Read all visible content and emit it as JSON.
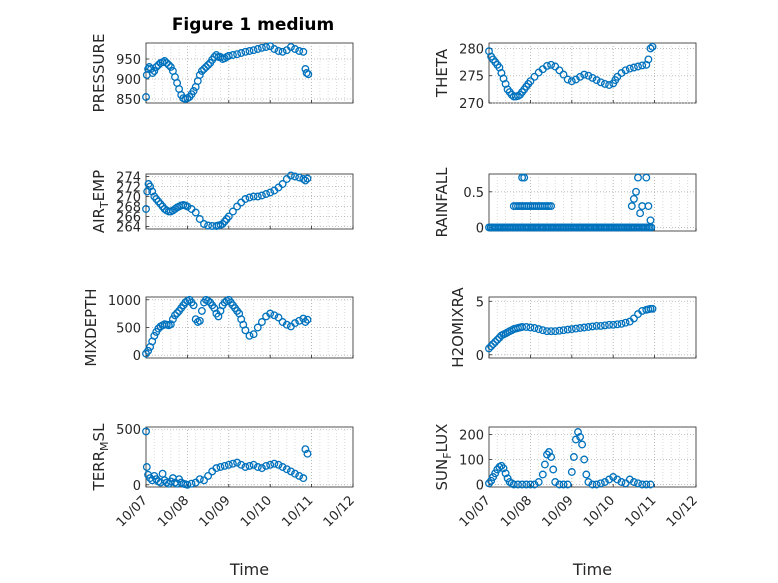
{
  "figure": {
    "title": "Figure 1 medium",
    "marker_color": "#0072BD"
  },
  "chart_data": [
    {
      "type": "scatter",
      "ylabel": "PRESSURE",
      "ylim": [
        840,
        990
      ],
      "yticks": [
        850,
        900,
        950
      ],
      "ytick_labels": [
        "850",
        "900",
        "950"
      ],
      "xlim": [
        0,
        5
      ],
      "xticks": [
        0,
        1,
        2,
        3,
        4,
        5
      ],
      "xtick_labels": [
        "10/07",
        "10/08",
        "10/09",
        "10/10",
        "10/11",
        "10/12"
      ],
      "show_x_labels": false,
      "xlabel": "",
      "x": [
        0.0,
        0.02,
        0.05,
        0.08,
        0.12,
        0.16,
        0.2,
        0.25,
        0.3,
        0.35,
        0.4,
        0.45,
        0.5,
        0.55,
        0.6,
        0.65,
        0.7,
        0.75,
        0.8,
        0.85,
        0.9,
        0.95,
        1.0,
        1.05,
        1.1,
        1.15,
        1.2,
        1.25,
        1.3,
        1.35,
        1.4,
        1.45,
        1.5,
        1.55,
        1.6,
        1.65,
        1.7,
        1.75,
        1.8,
        1.85,
        1.9,
        1.95,
        2.0,
        2.1,
        2.2,
        2.3,
        2.4,
        2.5,
        2.6,
        2.7,
        2.8,
        2.9,
        3.0,
        3.1,
        3.2,
        3.3,
        3.4,
        3.5,
        3.6,
        3.7,
        3.8,
        3.85,
        3.88,
        3.92
      ],
      "y": [
        855,
        910,
        925,
        930,
        925,
        915,
        920,
        930,
        935,
        940,
        942,
        945,
        940,
        935,
        930,
        920,
        905,
        890,
        875,
        860,
        852,
        850,
        852,
        855,
        862,
        870,
        880,
        895,
        910,
        920,
        925,
        930,
        935,
        940,
        948,
        955,
        960,
        955,
        955,
        950,
        952,
        955,
        958,
        960,
        962,
        965,
        968,
        970,
        972,
        975,
        978,
        980,
        982,
        975,
        970,
        968,
        972,
        980,
        975,
        970,
        968,
        925,
        915,
        912
      ]
    },
    {
      "type": "scatter",
      "ylabel": "THETA",
      "ylim": [
        270,
        281
      ],
      "yticks": [
        270,
        275,
        280
      ],
      "ytick_labels": [
        "270",
        "275",
        "280"
      ],
      "xlim": [
        0,
        5
      ],
      "xticks": [
        0,
        1,
        2,
        3,
        4,
        5
      ],
      "xtick_labels": [
        "10/07",
        "10/08",
        "10/09",
        "10/10",
        "10/11",
        "10/12"
      ],
      "show_x_labels": false,
      "xlabel": "",
      "x": [
        0.0,
        0.05,
        0.1,
        0.15,
        0.2,
        0.25,
        0.3,
        0.35,
        0.4,
        0.45,
        0.5,
        0.55,
        0.6,
        0.65,
        0.7,
        0.75,
        0.8,
        0.85,
        0.9,
        0.95,
        1.0,
        1.1,
        1.2,
        1.3,
        1.4,
        1.5,
        1.6,
        1.7,
        1.8,
        1.9,
        2.0,
        2.1,
        2.2,
        2.3,
        2.4,
        2.5,
        2.6,
        2.7,
        2.8,
        2.9,
        3.0,
        3.05,
        3.1,
        3.2,
        3.3,
        3.4,
        3.5,
        3.6,
        3.7,
        3.8,
        3.85,
        3.9,
        3.95
      ],
      "y": [
        279.5,
        278.5,
        278,
        277.5,
        277,
        276.5,
        275.5,
        274.5,
        273.5,
        272.5,
        272,
        271.5,
        271.2,
        271.2,
        271.3,
        271.5,
        272,
        272.5,
        273,
        273.5,
        274,
        274.8,
        275.6,
        276.2,
        276.8,
        277,
        276.7,
        276,
        275.2,
        274.3,
        274,
        274.3,
        274.8,
        275.2,
        275,
        274.6,
        274.2,
        273.8,
        273.5,
        273.3,
        273.6,
        274.2,
        274.8,
        275.5,
        276,
        276.3,
        276.5,
        276.7,
        276.9,
        277,
        278,
        280,
        280.3
      ]
    },
    {
      "type": "scatter",
      "ylabel": "AIR_T_EMP",
      "ylabel_parts": [
        "AIR",
        "T",
        "EMP"
      ],
      "ylim": [
        263.5,
        274.5
      ],
      "yticks": [
        264,
        266,
        268,
        270,
        272,
        274
      ],
      "ytick_labels": [
        "264",
        "266",
        "268",
        "270",
        "272",
        "274"
      ],
      "xlim": [
        0,
        5
      ],
      "xticks": [
        0,
        1,
        2,
        3,
        4,
        5
      ],
      "xtick_labels": [
        "10/07",
        "10/08",
        "10/09",
        "10/10",
        "10/11",
        "10/12"
      ],
      "show_x_labels": false,
      "xlabel": "",
      "x": [
        0.0,
        0.03,
        0.06,
        0.1,
        0.15,
        0.2,
        0.25,
        0.3,
        0.35,
        0.4,
        0.45,
        0.5,
        0.55,
        0.6,
        0.65,
        0.7,
        0.75,
        0.8,
        0.85,
        0.9,
        0.95,
        1.0,
        1.1,
        1.2,
        1.3,
        1.4,
        1.5,
        1.6,
        1.7,
        1.75,
        1.8,
        1.85,
        1.9,
        1.95,
        2.0,
        2.1,
        2.2,
        2.3,
        2.4,
        2.5,
        2.6,
        2.7,
        2.8,
        2.9,
        3.0,
        3.1,
        3.2,
        3.3,
        3.4,
        3.5,
        3.6,
        3.7,
        3.8,
        3.85,
        3.9
      ],
      "y": [
        267.5,
        271,
        272.5,
        272,
        271,
        270,
        269.5,
        269,
        268.5,
        268,
        267.5,
        267.2,
        267,
        267,
        267.2,
        267.5,
        267.8,
        268,
        268.2,
        268.3,
        268.2,
        268,
        267.5,
        266.8,
        265.5,
        264.5,
        264.2,
        264.1,
        264.1,
        264.2,
        264.3,
        264.5,
        265,
        265.5,
        266,
        267,
        268,
        268.8,
        269.5,
        269.8,
        270,
        270,
        270.2,
        270.5,
        270.8,
        271.2,
        271.8,
        272.5,
        273.5,
        274.2,
        274,
        273.8,
        273.5,
        273.2,
        273.6
      ]
    },
    {
      "type": "scatter",
      "ylabel": "RAINFALL",
      "ylim": [
        -0.05,
        0.75
      ],
      "yticks": [
        0,
        0.5
      ],
      "ytick_labels": [
        "0",
        "0.5"
      ],
      "xlim": [
        0,
        5
      ],
      "xticks": [
        0,
        1,
        2,
        3,
        4,
        5
      ],
      "xtick_labels": [
        "10/07",
        "10/08",
        "10/09",
        "10/10",
        "10/11",
        "10/12"
      ],
      "show_x_labels": false,
      "xlabel": "",
      "x": [
        0.0,
        0.04,
        0.08,
        0.12,
        0.16,
        0.2,
        0.24,
        0.28,
        0.32,
        0.36,
        0.4,
        0.44,
        0.48,
        0.52,
        0.56,
        0.6,
        0.64,
        0.68,
        0.72,
        0.76,
        0.8,
        0.84,
        0.88,
        0.92,
        0.96,
        1.0,
        1.04,
        1.08,
        1.12,
        1.16,
        1.2,
        1.24,
        1.28,
        1.32,
        1.36,
        1.4,
        1.44,
        1.48,
        1.52,
        1.56,
        1.6,
        1.64,
        1.68,
        1.72,
        1.76,
        1.8,
        1.84,
        1.88,
        1.92,
        1.96,
        2.0,
        2.04,
        2.08,
        2.12,
        2.16,
        2.2,
        2.24,
        2.28,
        2.32,
        2.36,
        2.4,
        2.44,
        2.48,
        2.52,
        2.56,
        2.6,
        2.64,
        2.68,
        2.72,
        2.76,
        2.8,
        2.84,
        2.88,
        2.92,
        2.96,
        3.0,
        3.04,
        3.08,
        3.12,
        3.16,
        3.2,
        3.24,
        3.28,
        3.32,
        3.36,
        3.4,
        3.44,
        3.48,
        3.52,
        3.56,
        3.6,
        3.64,
        3.68,
        3.72,
        3.76,
        3.8,
        3.84,
        3.88,
        3.92,
        0.6,
        0.65,
        0.7,
        0.75,
        0.8,
        0.85,
        0.9,
        0.95,
        1.0,
        1.05,
        1.1,
        1.15,
        1.2,
        1.25,
        1.3,
        1.35,
        1.4,
        1.45,
        1.5,
        0.8,
        0.85,
        3.45,
        3.5,
        3.55,
        3.6,
        3.65,
        3.7,
        3.8,
        3.85,
        3.9
      ],
      "y": [
        0,
        0,
        0,
        0,
        0,
        0,
        0,
        0,
        0,
        0,
        0,
        0,
        0,
        0,
        0,
        0,
        0,
        0,
        0,
        0,
        0,
        0,
        0,
        0,
        0,
        0,
        0,
        0,
        0,
        0,
        0,
        0,
        0,
        0,
        0,
        0,
        0,
        0,
        0,
        0,
        0,
        0,
        0,
        0,
        0,
        0,
        0,
        0,
        0,
        0,
        0,
        0,
        0,
        0,
        0,
        0,
        0,
        0,
        0,
        0,
        0,
        0,
        0,
        0,
        0,
        0,
        0,
        0,
        0,
        0,
        0,
        0,
        0,
        0,
        0,
        0,
        0,
        0,
        0,
        0,
        0,
        0,
        0,
        0,
        0,
        0,
        0,
        0,
        0,
        0,
        0,
        0,
        0,
        0,
        0,
        0,
        0,
        0,
        0,
        0.3,
        0.3,
        0.3,
        0.3,
        0.3,
        0.3,
        0.3,
        0.3,
        0.3,
        0.3,
        0.3,
        0.3,
        0.3,
        0.3,
        0.3,
        0.3,
        0.3,
        0.3,
        0.3,
        0.7,
        0.7,
        0.3,
        0.4,
        0.5,
        0.7,
        0.2,
        0.3,
        0.7,
        0.3,
        0.1
      ]
    },
    {
      "type": "scatter",
      "ylabel": "MIXDEPTH",
      "ylim": [
        -50,
        1050
      ],
      "yticks": [
        0,
        500,
        1000
      ],
      "ytick_labels": [
        "0",
        "500",
        "1000"
      ],
      "xlim": [
        0,
        5
      ],
      "xticks": [
        0,
        1,
        2,
        3,
        4,
        5
      ],
      "xtick_labels": [
        "10/07",
        "10/08",
        "10/09",
        "10/10",
        "10/11",
        "10/12"
      ],
      "show_x_labels": false,
      "xlabel": "",
      "x": [
        0.0,
        0.05,
        0.1,
        0.15,
        0.2,
        0.25,
        0.3,
        0.35,
        0.4,
        0.45,
        0.5,
        0.55,
        0.6,
        0.65,
        0.7,
        0.75,
        0.8,
        0.85,
        0.9,
        0.95,
        1.0,
        1.05,
        1.1,
        1.15,
        1.2,
        1.25,
        1.3,
        1.35,
        1.4,
        1.45,
        1.5,
        1.55,
        1.6,
        1.65,
        1.7,
        1.75,
        1.8,
        1.85,
        1.9,
        1.95,
        2.0,
        2.05,
        2.1,
        2.15,
        2.2,
        2.25,
        2.3,
        2.35,
        2.4,
        2.5,
        2.6,
        2.7,
        2.8,
        2.9,
        3.0,
        3.1,
        3.2,
        3.3,
        3.4,
        3.5,
        3.6,
        3.7,
        3.8,
        3.85,
        3.9
      ],
      "y": [
        30,
        80,
        150,
        250,
        350,
        420,
        480,
        520,
        540,
        560,
        550,
        540,
        560,
        650,
        720,
        760,
        800,
        850,
        900,
        950,
        980,
        1000,
        950,
        900,
        650,
        600,
        620,
        800,
        950,
        1000,
        980,
        950,
        900,
        850,
        750,
        700,
        800,
        900,
        950,
        980,
        1000,
        950,
        900,
        850,
        800,
        750,
        650,
        550,
        450,
        350,
        380,
        500,
        600,
        700,
        750,
        720,
        680,
        600,
        550,
        520,
        580,
        620,
        660,
        600,
        640
      ]
    },
    {
      "type": "scatter",
      "ylabel": "H2OMIXRA",
      "ylim": [
        -0.3,
        5.4
      ],
      "yticks": [
        0,
        5
      ],
      "ytick_labels": [
        "0",
        "5"
      ],
      "xlim": [
        0,
        5
      ],
      "xticks": [
        0,
        1,
        2,
        3,
        4,
        5
      ],
      "xtick_labels": [
        "10/07",
        "10/08",
        "10/09",
        "10/10",
        "10/11",
        "10/12"
      ],
      "show_x_labels": false,
      "xlabel": "",
      "x": [
        0.0,
        0.05,
        0.1,
        0.15,
        0.2,
        0.25,
        0.3,
        0.35,
        0.4,
        0.45,
        0.5,
        0.55,
        0.6,
        0.65,
        0.7,
        0.75,
        0.8,
        0.9,
        1.0,
        1.1,
        1.2,
        1.3,
        1.4,
        1.5,
        1.6,
        1.7,
        1.8,
        1.9,
        2.0,
        2.1,
        2.2,
        2.3,
        2.4,
        2.5,
        2.6,
        2.7,
        2.8,
        2.9,
        3.0,
        3.1,
        3.2,
        3.3,
        3.4,
        3.5,
        3.6,
        3.7,
        3.8,
        3.85,
        3.9,
        3.95
      ],
      "y": [
        0.6,
        0.8,
        1.0,
        1.2,
        1.4,
        1.6,
        1.8,
        1.9,
        2.0,
        2.1,
        2.2,
        2.3,
        2.4,
        2.45,
        2.5,
        2.55,
        2.6,
        2.6,
        2.55,
        2.5,
        2.4,
        2.3,
        2.2,
        2.2,
        2.2,
        2.25,
        2.3,
        2.35,
        2.4,
        2.45,
        2.5,
        2.55,
        2.6,
        2.65,
        2.7,
        2.7,
        2.75,
        2.8,
        2.8,
        2.85,
        2.9,
        3.0,
        3.1,
        3.4,
        3.8,
        4.1,
        4.2,
        4.25,
        4.3,
        4.3
      ]
    },
    {
      "type": "scatter",
      "ylabel": "TERR_M_SL",
      "ylabel_parts": [
        "TERR",
        "M",
        "SL"
      ],
      "ylim": [
        -20,
        520
      ],
      "yticks": [
        0,
        500
      ],
      "ytick_labels": [
        "0",
        "500"
      ],
      "xlim": [
        0,
        5
      ],
      "xticks": [
        0,
        1,
        2,
        3,
        4,
        5
      ],
      "xtick_labels": [
        "10/07",
        "10/08",
        "10/09",
        "10/10",
        "10/11",
        "10/12"
      ],
      "show_x_labels": true,
      "xlabel": "Time",
      "x": [
        0.0,
        0.02,
        0.05,
        0.1,
        0.15,
        0.2,
        0.25,
        0.3,
        0.35,
        0.4,
        0.45,
        0.5,
        0.55,
        0.6,
        0.65,
        0.7,
        0.75,
        0.8,
        0.85,
        0.9,
        0.95,
        1.0,
        1.1,
        1.2,
        1.3,
        1.4,
        1.5,
        1.6,
        1.7,
        1.8,
        1.9,
        2.0,
        2.1,
        2.2,
        2.3,
        2.4,
        2.5,
        2.6,
        2.7,
        2.8,
        2.9,
        3.0,
        3.1,
        3.2,
        3.3,
        3.4,
        3.5,
        3.6,
        3.7,
        3.8,
        3.85,
        3.9
      ],
      "y": [
        480,
        160,
        90,
        60,
        40,
        80,
        50,
        30,
        20,
        100,
        40,
        20,
        10,
        30,
        60,
        20,
        10,
        50,
        20,
        10,
        5,
        0,
        10,
        20,
        50,
        40,
        80,
        120,
        150,
        160,
        170,
        180,
        190,
        200,
        180,
        160,
        170,
        180,
        160,
        150,
        170,
        180,
        190,
        180,
        160,
        140,
        120,
        100,
        80,
        60,
        320,
        280
      ]
    },
    {
      "type": "scatter",
      "ylabel": "SUN_F_LUX",
      "ylabel_parts": [
        "SUN",
        "F",
        "LUX"
      ],
      "ylim": [
        -10,
        230
      ],
      "yticks": [
        0,
        100,
        200
      ],
      "ytick_labels": [
        "0",
        "100",
        "200"
      ],
      "xlim": [
        0,
        5
      ],
      "xticks": [
        0,
        1,
        2,
        3,
        4,
        5
      ],
      "xtick_labels": [
        "10/07",
        "10/08",
        "10/09",
        "10/10",
        "10/11",
        "10/12"
      ],
      "show_x_labels": true,
      "xlabel": "Time",
      "x": [
        0.0,
        0.05,
        0.1,
        0.15,
        0.2,
        0.25,
        0.3,
        0.35,
        0.4,
        0.45,
        0.5,
        0.55,
        0.6,
        0.7,
        0.8,
        0.9,
        1.0,
        1.1,
        1.2,
        1.3,
        1.35,
        1.4,
        1.45,
        1.5,
        1.55,
        1.6,
        1.7,
        1.8,
        1.9,
        2.0,
        2.05,
        2.1,
        2.15,
        2.2,
        2.25,
        2.3,
        2.35,
        2.4,
        2.5,
        2.6,
        2.7,
        2.8,
        2.9,
        3.0,
        3.1,
        3.2,
        3.3,
        3.4,
        3.5,
        3.6,
        3.7,
        3.8,
        3.9
      ],
      "y": [
        5,
        15,
        30,
        45,
        60,
        70,
        75,
        65,
        45,
        25,
        10,
        5,
        0,
        0,
        0,
        0,
        0,
        0,
        10,
        40,
        80,
        120,
        130,
        110,
        60,
        10,
        0,
        0,
        0,
        50,
        110,
        180,
        210,
        190,
        160,
        100,
        40,
        10,
        0,
        0,
        5,
        10,
        20,
        30,
        20,
        10,
        5,
        20,
        10,
        5,
        0,
        0,
        0
      ]
    }
  ]
}
